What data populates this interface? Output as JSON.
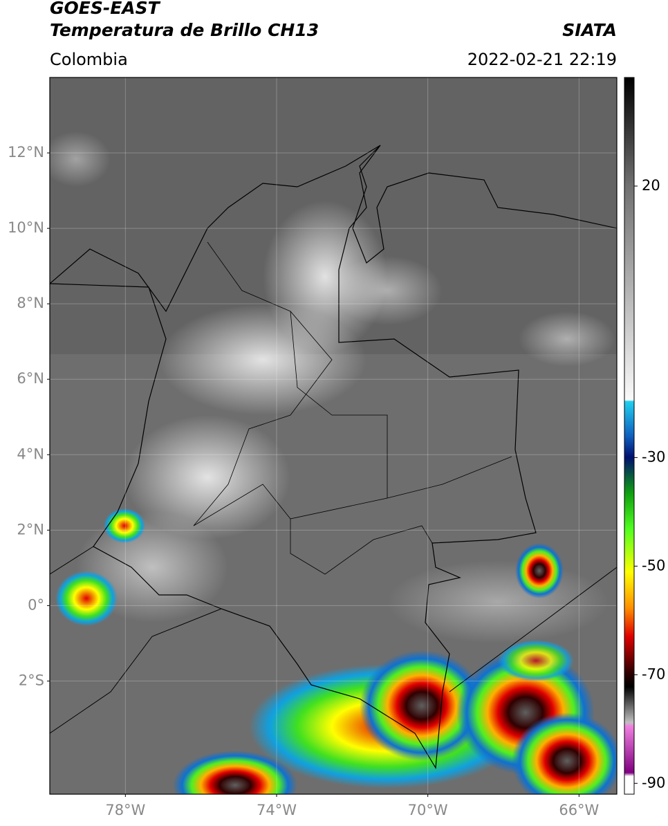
{
  "header": {
    "satellite": "GOES-EAST",
    "product": "Temperatura de Brillo CH13",
    "source": "SIATA",
    "region": "Colombia",
    "datetime": "2022-02-21 22:19"
  },
  "map": {
    "lat_range": [
      -5,
      14
    ],
    "lon_range": [
      -80,
      -65
    ],
    "grid": true,
    "lat_ticks": [
      {
        "value": 12,
        "label": "12°N"
      },
      {
        "value": 10,
        "label": "10°N"
      },
      {
        "value": 8,
        "label": "8°N"
      },
      {
        "value": 6,
        "label": "6°N"
      },
      {
        "value": 4,
        "label": "4°N"
      },
      {
        "value": 2,
        "label": "2°N"
      },
      {
        "value": 0,
        "label": "0°"
      },
      {
        "value": -2,
        "label": "2°S"
      }
    ],
    "lon_ticks": [
      {
        "value": -78,
        "label": "78°W"
      },
      {
        "value": -74,
        "label": "74°W"
      },
      {
        "value": -70,
        "label": "70°W"
      },
      {
        "value": -66,
        "label": "66°W"
      }
    ]
  },
  "colorbar": {
    "range": [
      -92,
      40
    ],
    "ticks": [
      20,
      -30,
      -50,
      -70,
      -90
    ]
  }
}
